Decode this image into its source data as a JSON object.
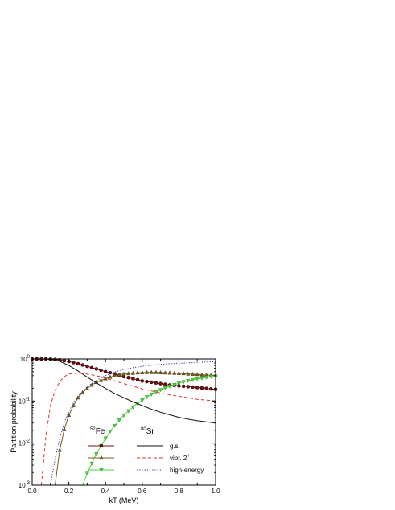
{
  "chart_data": {
    "type": "line",
    "title": "",
    "xlabel": "kT (MeV)",
    "ylabel": "Partition probability",
    "xlim": [
      0.0,
      1.0
    ],
    "ylim": [
      0.001,
      1
    ],
    "yscale": "log",
    "grid": false,
    "x_ticks": [
      {
        "value": 0.0,
        "label": "0.0"
      },
      {
        "value": 0.2,
        "label": "0.2"
      },
      {
        "value": 0.4,
        "label": "0.4"
      },
      {
        "value": 0.6,
        "label": "0.6"
      },
      {
        "value": 0.8,
        "label": "0.8"
      },
      {
        "value": 1.0,
        "label": "1.0"
      }
    ],
    "y_ticks": [
      {
        "value": 1,
        "base": "10",
        "exp": "0"
      },
      {
        "value": 0.1,
        "base": "10",
        "exp": "-1"
      },
      {
        "value": 0.01,
        "base": "10",
        "exp": "-2"
      },
      {
        "value": 0.001,
        "base": "10",
        "exp": "-3"
      }
    ],
    "legend": {
      "position": "bottom-center",
      "col1_header": {
        "sup": "52",
        "text": "Fe"
      },
      "col2_header": {
        "sup": "80",
        "text": "Sr"
      },
      "rows": [
        {
          "label": "g.s.",
          "sup": ""
        },
        {
          "label": "vibr. 2",
          "sup": "+"
        },
        {
          "label": "high-energy",
          "sup": ""
        }
      ]
    },
    "series": [
      {
        "key": "fe_gs",
        "nucleus": "52Fe",
        "state": "g.s.",
        "color": "#7a0f10",
        "marker": "circle",
        "dash": "",
        "x": [
          0.0,
          0.025,
          0.05,
          0.075,
          0.1,
          0.125,
          0.15,
          0.175,
          0.2,
          0.225,
          0.25,
          0.275,
          0.3,
          0.325,
          0.35,
          0.375,
          0.4,
          0.425,
          0.45,
          0.475,
          0.5,
          0.525,
          0.55,
          0.575,
          0.6,
          0.625,
          0.65,
          0.675,
          0.7,
          0.725,
          0.75,
          0.775,
          0.8,
          0.825,
          0.85,
          0.875,
          0.9,
          0.925,
          0.95,
          0.975,
          1.0
        ],
        "y": [
          1.0,
          1.0,
          1.0,
          1.0,
          0.99,
          0.97,
          0.95,
          0.91,
          0.87,
          0.82,
          0.77,
          0.72,
          0.67,
          0.62,
          0.58,
          0.54,
          0.5,
          0.47,
          0.44,
          0.41,
          0.38,
          0.36,
          0.34,
          0.32,
          0.3,
          0.29,
          0.28,
          0.27,
          0.26,
          0.25,
          0.24,
          0.235,
          0.23,
          0.225,
          0.22,
          0.215,
          0.21,
          0.205,
          0.2,
          0.195,
          0.19
        ]
      },
      {
        "key": "fe_vibr",
        "nucleus": "52Fe",
        "state": "vibr. 2+",
        "color": "#7a5c10",
        "marker": "triangle",
        "dash": "",
        "x": [
          0.125,
          0.15,
          0.175,
          0.2,
          0.225,
          0.25,
          0.275,
          0.3,
          0.325,
          0.35,
          0.375,
          0.4,
          0.425,
          0.45,
          0.475,
          0.5,
          0.525,
          0.55,
          0.575,
          0.6,
          0.625,
          0.65,
          0.675,
          0.7,
          0.725,
          0.75,
          0.775,
          0.8,
          0.825,
          0.85,
          0.875,
          0.9,
          0.925,
          0.95,
          0.975,
          1.0
        ],
        "y": [
          0.001,
          0.0068,
          0.021,
          0.046,
          0.078,
          0.12,
          0.16,
          0.2,
          0.24,
          0.28,
          0.31,
          0.34,
          0.37,
          0.4,
          0.42,
          0.44,
          0.45,
          0.46,
          0.47,
          0.475,
          0.48,
          0.48,
          0.48,
          0.475,
          0.47,
          0.465,
          0.46,
          0.455,
          0.45,
          0.44,
          0.435,
          0.43,
          0.42,
          0.415,
          0.41,
          0.4
        ]
      },
      {
        "key": "fe_high",
        "nucleus": "52Fe",
        "state": "high-energy",
        "color": "#4ed43f",
        "marker": "triangle-down",
        "dash": "",
        "x": [
          0.275,
          0.3,
          0.325,
          0.35,
          0.375,
          0.4,
          0.425,
          0.45,
          0.475,
          0.5,
          0.525,
          0.55,
          0.575,
          0.6,
          0.625,
          0.65,
          0.675,
          0.7,
          0.725,
          0.75,
          0.775,
          0.8,
          0.825,
          0.85,
          0.875,
          0.9,
          0.925,
          0.95,
          0.975,
          1.0
        ],
        "y": [
          0.001,
          0.0019,
          0.0033,
          0.0055,
          0.0085,
          0.013,
          0.019,
          0.026,
          0.035,
          0.046,
          0.058,
          0.072,
          0.088,
          0.105,
          0.125,
          0.145,
          0.165,
          0.185,
          0.205,
          0.225,
          0.245,
          0.265,
          0.285,
          0.305,
          0.32,
          0.335,
          0.35,
          0.365,
          0.38,
          0.39
        ]
      },
      {
        "key": "sr_gs",
        "nucleus": "80Sr",
        "state": "g.s.",
        "color": "#111111",
        "marker": "none",
        "dash": "",
        "x": [
          0.0,
          0.05,
          0.1,
          0.15,
          0.2,
          0.25,
          0.3,
          0.35,
          0.4,
          0.45,
          0.5,
          0.55,
          0.6,
          0.65,
          0.7,
          0.75,
          0.8,
          0.85,
          0.9,
          0.95,
          1.0
        ],
        "y": [
          1.0,
          1.0,
          0.98,
          0.88,
          0.7,
          0.52,
          0.37,
          0.27,
          0.2,
          0.15,
          0.12,
          0.095,
          0.078,
          0.064,
          0.054,
          0.047,
          0.041,
          0.037,
          0.034,
          0.032,
          0.03
        ]
      },
      {
        "key": "sr_vibr",
        "nucleus": "80Sr",
        "state": "vibr. 2+",
        "color": "#e0302a",
        "marker": "none",
        "dash": "4,3",
        "x": [
          0.05,
          0.075,
          0.1,
          0.125,
          0.15,
          0.175,
          0.2,
          0.25,
          0.3,
          0.35,
          0.4,
          0.45,
          0.5,
          0.55,
          0.6,
          0.65,
          0.7,
          0.75,
          0.8,
          0.85,
          0.9,
          0.95,
          1.0
        ],
        "y": [
          0.001,
          0.015,
          0.08,
          0.18,
          0.29,
          0.38,
          0.44,
          0.46,
          0.44,
          0.4,
          0.35,
          0.3,
          0.26,
          0.225,
          0.195,
          0.175,
          0.155,
          0.14,
          0.13,
          0.12,
          0.11,
          0.105,
          0.1
        ]
      },
      {
        "key": "sr_high",
        "nucleus": "80Sr",
        "state": "high-energy",
        "color": "#3030b0",
        "marker": "none",
        "dash": "1.2,2",
        "x": [
          0.1,
          0.125,
          0.15,
          0.175,
          0.2,
          0.225,
          0.25,
          0.3,
          0.35,
          0.4,
          0.45,
          0.5,
          0.55,
          0.6,
          0.65,
          0.7,
          0.75,
          0.8,
          0.85,
          0.9,
          0.95,
          1.0
        ],
        "y": [
          0.001,
          0.0042,
          0.013,
          0.03,
          0.056,
          0.09,
          0.13,
          0.22,
          0.31,
          0.4,
          0.49,
          0.56,
          0.62,
          0.67,
          0.71,
          0.74,
          0.77,
          0.79,
          0.81,
          0.83,
          0.845,
          0.86
        ]
      }
    ]
  }
}
